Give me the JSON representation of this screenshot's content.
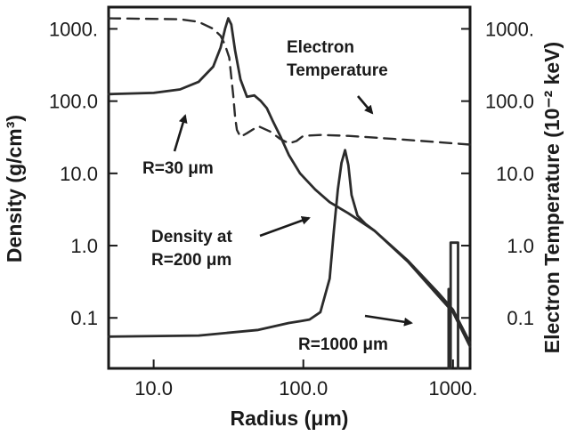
{
  "chart_data": {
    "type": "line",
    "title": "",
    "xlabel": "Radius (μm)",
    "ylabel_left": "Density (g/cm³)",
    "ylabel_right": "Electron Temperature (10⁻² keV)",
    "x_scale": "log",
    "y_scale": "log",
    "xlim": [
      5,
      1300
    ],
    "ylim": [
      0.02,
      2000
    ],
    "x_ticks": [
      {
        "value": 10,
        "label": "10.0"
      },
      {
        "value": 100,
        "label": "100.0"
      },
      {
        "value": 1000,
        "label": "1000."
      }
    ],
    "y_ticks_left": [
      {
        "value": 0.1,
        "label": "0.1"
      },
      {
        "value": 1,
        "label": "1.0"
      },
      {
        "value": 10,
        "label": "10.0"
      },
      {
        "value": 100,
        "label": "100.0"
      },
      {
        "value": 1000,
        "label": "1000."
      }
    ],
    "y_ticks_right": [
      {
        "value": 0.1,
        "label": "0.1"
      },
      {
        "value": 1,
        "label": "1.0"
      },
      {
        "value": 10,
        "label": "10.0"
      },
      {
        "value": 100,
        "label": "100.0"
      },
      {
        "value": 1000,
        "label": "1000."
      }
    ],
    "grid": false,
    "legend": "none",
    "series": [
      {
        "style": "solid",
        "points": [
          [
            5,
            125
          ],
          [
            10,
            130
          ],
          [
            15,
            145
          ],
          [
            20,
            185
          ],
          [
            25,
            300
          ],
          [
            28,
            550
          ],
          [
            30,
            1000
          ],
          [
            31.5,
            1400
          ],
          [
            33,
            1150
          ],
          [
            35,
            500
          ],
          [
            38,
            200
          ],
          [
            42,
            115
          ],
          [
            47,
            120
          ],
          [
            52,
            100
          ],
          [
            57,
            80
          ],
          [
            62,
            55
          ],
          [
            70,
            33
          ],
          [
            80,
            18
          ],
          [
            95,
            10
          ],
          [
            120,
            6
          ],
          [
            150,
            4
          ],
          [
            200,
            2.8
          ],
          [
            300,
            1.6
          ],
          [
            500,
            0.6
          ],
          [
            800,
            0.2
          ],
          [
            1000,
            0.12
          ],
          [
            1300,
            0.04
          ]
        ]
      },
      {
        "style": "solid",
        "points": [
          [
            5,
            0.055
          ],
          [
            20,
            0.057
          ],
          [
            50,
            0.068
          ],
          [
            80,
            0.085
          ],
          [
            95,
            0.09
          ],
          [
            110,
            0.095
          ],
          [
            130,
            0.12
          ],
          [
            150,
            0.35
          ],
          [
            160,
            1.6
          ],
          [
            170,
            6
          ],
          [
            180,
            14
          ],
          [
            190,
            21
          ],
          [
            200,
            13
          ],
          [
            210,
            5
          ],
          [
            230,
            2.6
          ],
          [
            260,
            2
          ],
          [
            300,
            1.6
          ],
          [
            500,
            0.62
          ],
          [
            800,
            0.22
          ],
          [
            1000,
            0.13
          ],
          [
            1300,
            0.045
          ]
        ]
      },
      {
        "style": "solid",
        "points": [
          [
            935,
            0.02
          ],
          [
            935,
            0.25
          ],
          [
            965,
            0.25
          ],
          [
            965,
            0.02
          ],
          [
            965,
            1.1
          ],
          [
            1080,
            1.1
          ],
          [
            1080,
            0.02
          ]
        ]
      },
      {
        "style": "dashed",
        "points": [
          [
            5,
            1400
          ],
          [
            15,
            1360
          ],
          [
            20,
            1250
          ],
          [
            25,
            1000
          ],
          [
            28,
            800
          ],
          [
            30,
            600
          ],
          [
            32,
            400
          ],
          [
            34,
            120
          ],
          [
            35,
            60
          ],
          [
            36,
            40
          ],
          [
            38,
            32
          ],
          [
            42,
            36
          ],
          [
            50,
            45
          ],
          [
            60,
            38
          ],
          [
            70,
            30
          ],
          [
            80,
            26
          ],
          [
            90,
            28
          ],
          [
            100,
            33
          ],
          [
            130,
            34
          ],
          [
            200,
            33
          ],
          [
            400,
            30
          ],
          [
            800,
            27
          ],
          [
            1300,
            25
          ]
        ]
      }
    ],
    "annotations": [
      {
        "lines": [
          "Electron",
          "Temperature"
        ]
      },
      {
        "lines": [
          "R=30 μm"
        ]
      },
      {
        "lines": [
          "Density at",
          "R=200 μm"
        ]
      },
      {
        "lines": [
          "R=1000 μm"
        ]
      }
    ]
  }
}
